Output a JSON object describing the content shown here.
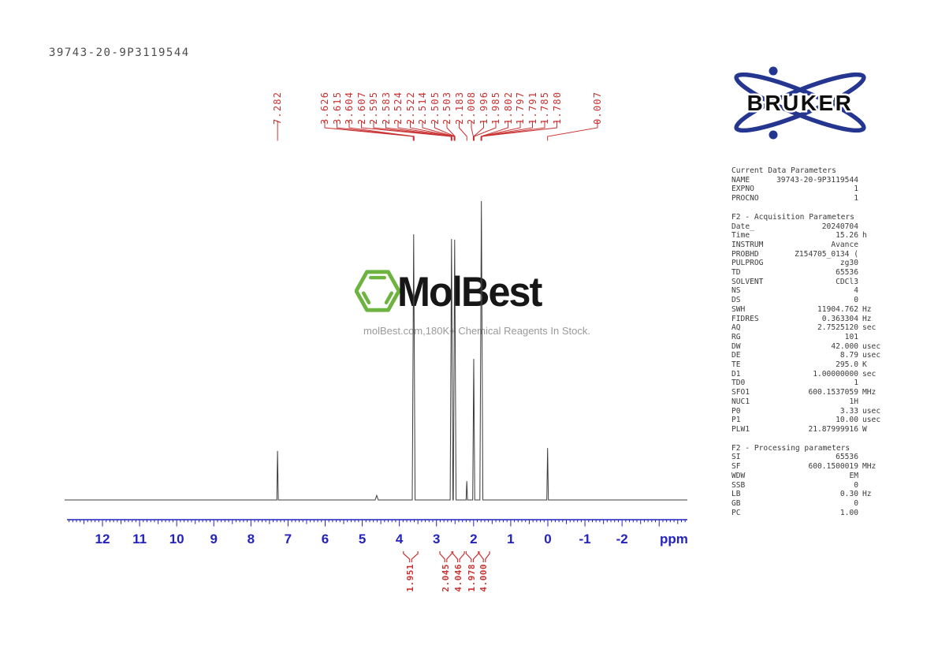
{
  "sample_id": "39743-20-9P3119544",
  "brand": "BRUKER",
  "watermark": {
    "title": "MolBest",
    "tagline": "molBest.com,180K+ Chemical Reagents In Stock."
  },
  "colors": {
    "red": "#c93333",
    "axis_blue": "#2323bd",
    "bruker_blue": "#24368f",
    "molbest_green": "#6db33f",
    "trace": "#3c3c3c"
  },
  "peak_labels": [
    "7.282",
    "3.626",
    "3.615",
    "3.604",
    "2.607",
    "2.595",
    "2.583",
    "2.524",
    "2.522",
    "2.514",
    "2.505",
    "2.503",
    "2.183",
    "2.008",
    "1.996",
    "1.985",
    "1.802",
    "1.797",
    "1.791",
    "1.785",
    "1.780",
    "0.007"
  ],
  "chart_data": {
    "type": "line",
    "title": "1H NMR spectrum 39743-20-9P3119544",
    "xlabel": "ppm",
    "x_axis": {
      "min": -3.7,
      "max": 12.9,
      "reversed": true,
      "major_ticks": [
        12,
        11,
        10,
        9,
        8,
        7,
        6,
        5,
        4,
        3,
        2,
        1,
        0,
        -1,
        -2
      ],
      "unit": "ppm"
    },
    "grid": false,
    "peaks": [
      {
        "ppm": 7.282,
        "rel_height": 0.164
      },
      {
        "ppm": 4.61,
        "rel_height": 0.015
      },
      {
        "ppm": 3.615,
        "rel_height": 0.889
      },
      {
        "ppm": 2.595,
        "rel_height": 0.873
      },
      {
        "ppm": 2.51,
        "rel_height": 0.871
      },
      {
        "ppm": 2.183,
        "rel_height": 0.063
      },
      {
        "ppm": 1.996,
        "rel_height": 0.472
      },
      {
        "ppm": 1.791,
        "rel_height": 1.0
      },
      {
        "ppm": 0.007,
        "rel_height": 0.174
      }
    ],
    "peak_shift_labels": [
      "7.282",
      "3.626",
      "3.615",
      "3.604",
      "2.607",
      "2.595",
      "2.583",
      "2.524",
      "2.522",
      "2.514",
      "2.505",
      "2.503",
      "2.183",
      "2.008",
      "1.996",
      "1.985",
      "1.802",
      "1.797",
      "1.791",
      "1.785",
      "1.780",
      "0.007"
    ],
    "integrals": [
      {
        "value": "1.951",
        "ppm_from": 3.89,
        "ppm_to": 3.5
      },
      {
        "value": "2.045",
        "ppm_from": 2.91,
        "ppm_to": 2.59
      },
      {
        "value": "4.046",
        "ppm_from": 2.56,
        "ppm_to": 2.25
      },
      {
        "value": "1.978",
        "ppm_from": 2.2,
        "ppm_to": 1.87
      },
      {
        "value": "4.000",
        "ppm_from": 1.85,
        "ppm_to": 1.57
      }
    ]
  },
  "parameters": {
    "sections": [
      {
        "title": "Current Data Parameters",
        "rows": [
          {
            "k": "NAME",
            "v": "39743-20-9P3119544",
            "u": ""
          },
          {
            "k": "EXPNO",
            "v": "1",
            "u": ""
          },
          {
            "k": "PROCNO",
            "v": "1",
            "u": ""
          }
        ]
      },
      {
        "title": "F2 - Acquisition Parameters",
        "rows": [
          {
            "k": "Date_",
            "v": "20240704",
            "u": ""
          },
          {
            "k": "Time",
            "v": "15.26",
            "u": "h"
          },
          {
            "k": "INSTRUM",
            "v": "Avance",
            "u": ""
          },
          {
            "k": "PROBHD",
            "v": "Z154705_0134 (",
            "u": ""
          },
          {
            "k": "PULPROG",
            "v": "zg30",
            "u": ""
          },
          {
            "k": "TD",
            "v": "65536",
            "u": ""
          },
          {
            "k": "SOLVENT",
            "v": "CDCl3",
            "u": ""
          },
          {
            "k": "NS",
            "v": "4",
            "u": ""
          },
          {
            "k": "DS",
            "v": "0",
            "u": ""
          },
          {
            "k": "SWH",
            "v": "11904.762",
            "u": "Hz"
          },
          {
            "k": "FIDRES",
            "v": "0.363304",
            "u": "Hz"
          },
          {
            "k": "AQ",
            "v": "2.7525120",
            "u": "sec"
          },
          {
            "k": "RG",
            "v": "101",
            "u": ""
          },
          {
            "k": "DW",
            "v": "42.000",
            "u": "usec"
          },
          {
            "k": "DE",
            "v": "8.79",
            "u": "usec"
          },
          {
            "k": "TE",
            "v": "295.0",
            "u": "K"
          },
          {
            "k": "D1",
            "v": "1.00000000",
            "u": "sec"
          },
          {
            "k": "TD0",
            "v": "1",
            "u": ""
          },
          {
            "k": "SFO1",
            "v": "600.1537059",
            "u": "MHz"
          },
          {
            "k": "NUC1",
            "v": "1H",
            "u": ""
          },
          {
            "k": "P0",
            "v": "3.33",
            "u": "usec"
          },
          {
            "k": "P1",
            "v": "10.00",
            "u": "usec"
          },
          {
            "k": "PLW1",
            "v": "21.87999916",
            "u": "W"
          }
        ]
      },
      {
        "title": "F2 - Processing parameters",
        "rows": [
          {
            "k": "SI",
            "v": "65536",
            "u": ""
          },
          {
            "k": "SF",
            "v": "600.1500019",
            "u": "MHz"
          },
          {
            "k": "WDW",
            "v": "EM",
            "u": ""
          },
          {
            "k": "SSB",
            "v": "0",
            "u": ""
          },
          {
            "k": "LB",
            "v": "0.30",
            "u": "Hz"
          },
          {
            "k": "GB",
            "v": "0",
            "u": ""
          },
          {
            "k": "PC",
            "v": "1.00",
            "u": ""
          }
        ]
      }
    ]
  }
}
